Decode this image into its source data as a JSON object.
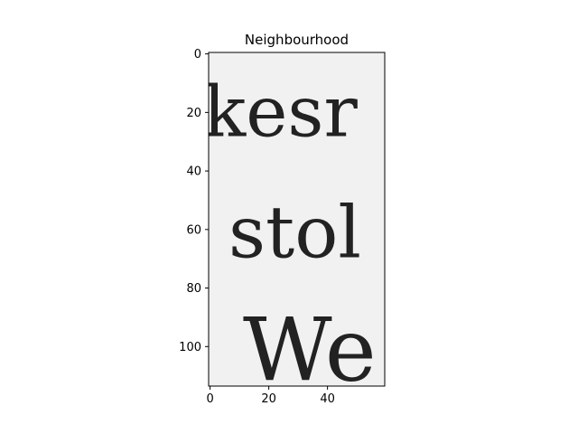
{
  "chart_data": {
    "type": "image",
    "title": "Neighbourhood",
    "xlabel": "",
    "ylabel": "",
    "xlim": [
      -0.5,
      59.5
    ],
    "ylim": [
      113.5,
      -0.5
    ],
    "x_ticks": [
      0,
      20,
      40
    ],
    "y_ticks": [
      0,
      20,
      40,
      60,
      80,
      100
    ],
    "y_inverted": true,
    "grid": false,
    "image_content": {
      "description": "grayscale crop of scanned serif text",
      "lines": [
        {
          "text": "kesr",
          "row_center": 20
        },
        {
          "text": "stol",
          "row_center": 62
        },
        {
          "text": "We",
          "row_center": 101
        }
      ],
      "background_color": "#f1f1f1",
      "ink_color": "#1e1e1e"
    }
  }
}
